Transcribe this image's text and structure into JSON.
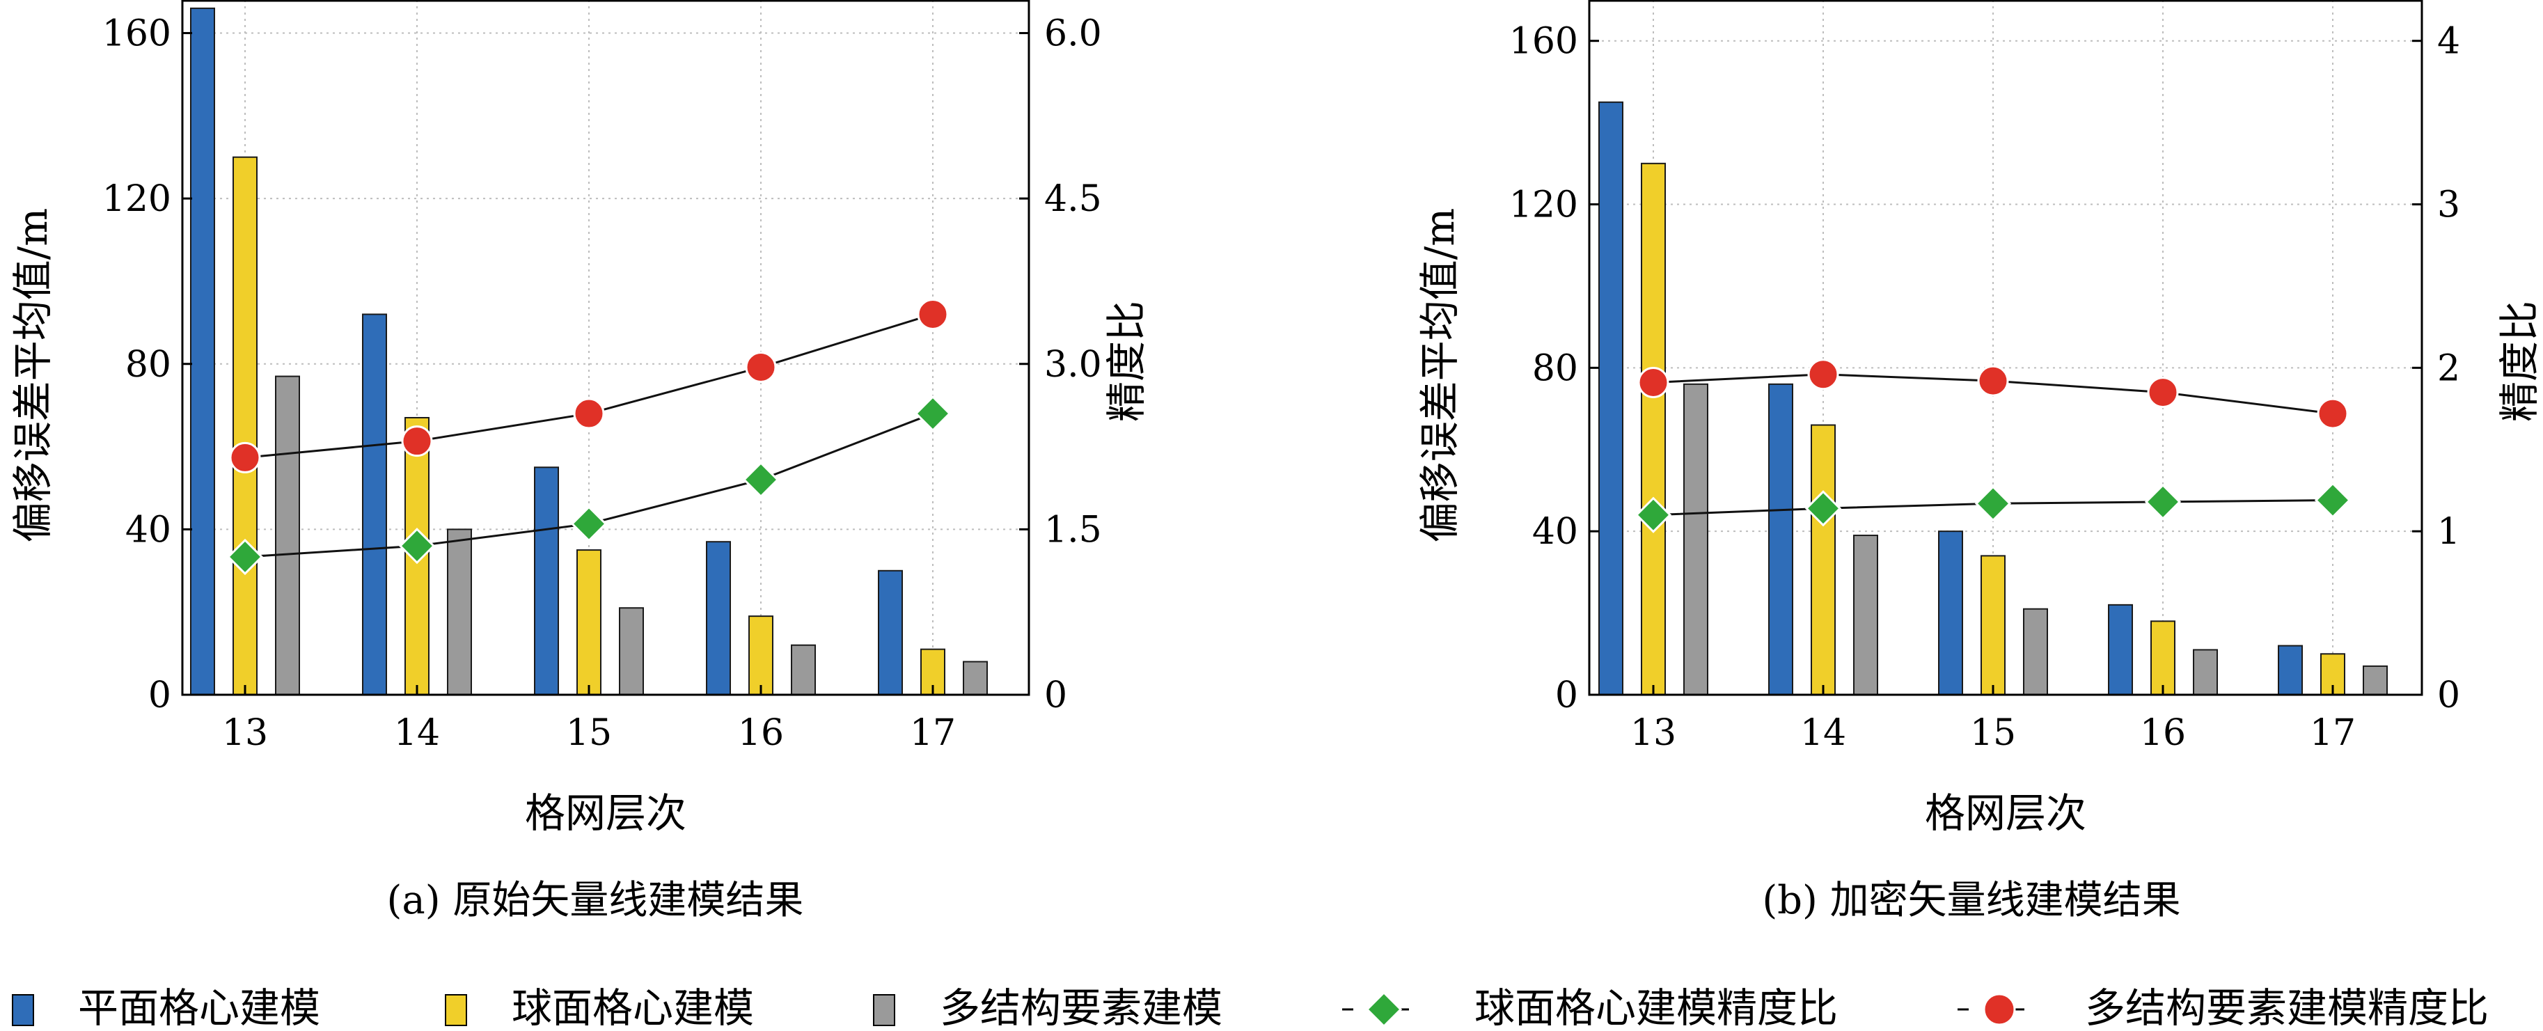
{
  "colors": {
    "planar": "#2f6db8",
    "spherical": "#f0cf2a",
    "multi": "#9a9a9a",
    "green_line": "#2fa83a",
    "red_line": "#e03127"
  },
  "legend": {
    "planar": "平面格心建模",
    "spherical": "球面格心建模",
    "multi": "多结构要素建模",
    "green_ratio": "球面格心建模精度比",
    "red_ratio": "多结构要素建模精度比"
  },
  "chart_data": [
    {
      "type": "bar",
      "caption": "(a) 原始矢量线建模结果",
      "xlabel": "格网层次",
      "ylabel": "偏移误差平均值/m",
      "y2label": "精度比",
      "categories": [
        "13",
        "14",
        "15",
        "16",
        "17"
      ],
      "ylim": [
        0,
        168
      ],
      "yticks": [
        0,
        40,
        80,
        120,
        160
      ],
      "y2lim": [
        0,
        6.3
      ],
      "y2ticks": [
        "0",
        "1.5",
        "3.0",
        "4.5",
        "6.0"
      ],
      "grid": true,
      "series": [
        {
          "name": "平面格心建模",
          "kind": "bar",
          "values": [
            166,
            92,
            55,
            37,
            30
          ]
        },
        {
          "name": "球面格心建模",
          "kind": "bar",
          "values": [
            130,
            67,
            35,
            19,
            11
          ]
        },
        {
          "name": "多结构要素建模",
          "kind": "bar",
          "values": [
            77,
            40,
            21,
            12,
            8
          ]
        },
        {
          "name": "球面格心建模精度比",
          "kind": "line",
          "axis": "right",
          "values": [
            1.25,
            1.35,
            1.55,
            1.95,
            2.55
          ]
        },
        {
          "name": "多结构要素建模精度比",
          "kind": "line",
          "axis": "right",
          "values": [
            2.15,
            2.3,
            2.55,
            2.97,
            3.45
          ]
        }
      ]
    },
    {
      "type": "bar",
      "caption": "(b) 加密矢量线建模结果",
      "xlabel": "格网层次",
      "ylabel": "偏移误差平均值/m",
      "y2label": "精度比",
      "categories": [
        "13",
        "14",
        "15",
        "16",
        "17"
      ],
      "ylim": [
        0,
        170
      ],
      "yticks": [
        0,
        40,
        80,
        120,
        160
      ],
      "y2lim": [
        0,
        4.25
      ],
      "y2ticks": [
        "0",
        "1",
        "2",
        "3",
        "4"
      ],
      "grid": true,
      "series": [
        {
          "name": "平面格心建模",
          "kind": "bar",
          "values": [
            145,
            76,
            40,
            22,
            12
          ]
        },
        {
          "name": "球面格心建模",
          "kind": "bar",
          "values": [
            130,
            66,
            34,
            18,
            10
          ]
        },
        {
          "name": "多结构要素建模",
          "kind": "bar",
          "values": [
            76,
            39,
            21,
            11,
            7
          ]
        },
        {
          "name": "球面格心建模精度比",
          "kind": "line",
          "axis": "right",
          "values": [
            1.1,
            1.14,
            1.17,
            1.18,
            1.19
          ]
        },
        {
          "name": "多结构要素建模精度比",
          "kind": "line",
          "axis": "right",
          "values": [
            1.91,
            1.96,
            1.92,
            1.85,
            1.72
          ]
        }
      ]
    }
  ]
}
